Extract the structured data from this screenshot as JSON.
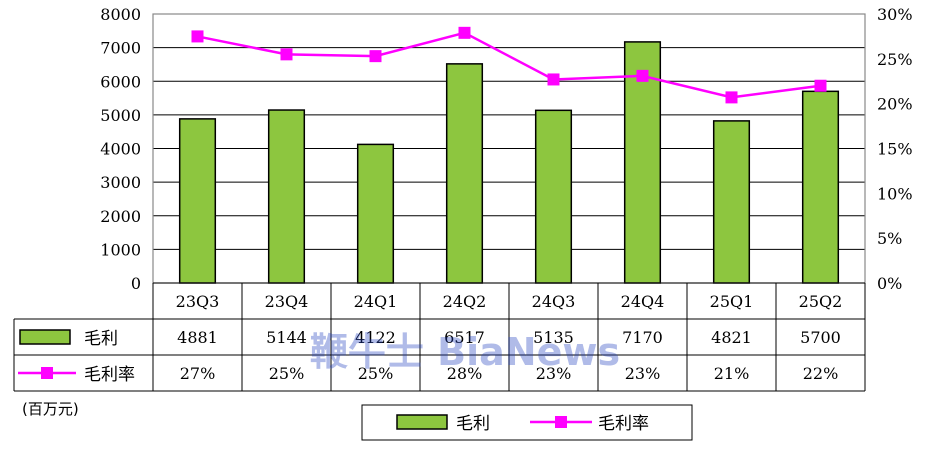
{
  "chart_data": {
    "type": "bar",
    "categories": [
      "23Q3",
      "23Q4",
      "24Q1",
      "24Q2",
      "24Q3",
      "24Q4",
      "25Q1",
      "25Q2"
    ],
    "series": [
      {
        "name": "毛利",
        "type": "bar",
        "axis": "left",
        "color": "#8DC63F",
        "values": [
          4881,
          5144,
          4122,
          6517,
          5135,
          7170,
          4821,
          5700
        ],
        "labels": [
          "4881",
          "5144",
          "4122",
          "6517",
          "5135",
          "7170",
          "4821",
          "5700"
        ]
      },
      {
        "name": "毛利率",
        "type": "line",
        "axis": "right",
        "color": "#FF00FF",
        "values": [
          27.5,
          25.5,
          25.3,
          27.9,
          22.7,
          23.1,
          20.7,
          22.0
        ],
        "labels": [
          "27%",
          "25%",
          "25%",
          "28%",
          "23%",
          "23%",
          "21%",
          "22%"
        ]
      }
    ],
    "y_left": {
      "min": 0,
      "max": 8000,
      "ticks": [
        "0",
        "1000",
        "2000",
        "3000",
        "4000",
        "5000",
        "6000",
        "7000",
        "8000"
      ]
    },
    "y_right": {
      "min": 0,
      "max": 30,
      "ticks": [
        "0%",
        "5%",
        "10%",
        "15%",
        "20%",
        "25%",
        "30%"
      ]
    },
    "unit_note": "(百万元)",
    "watermark": "鞭牛士 BiaNews",
    "grid": true,
    "legend_position": "bottom-center",
    "data_table": true
  }
}
